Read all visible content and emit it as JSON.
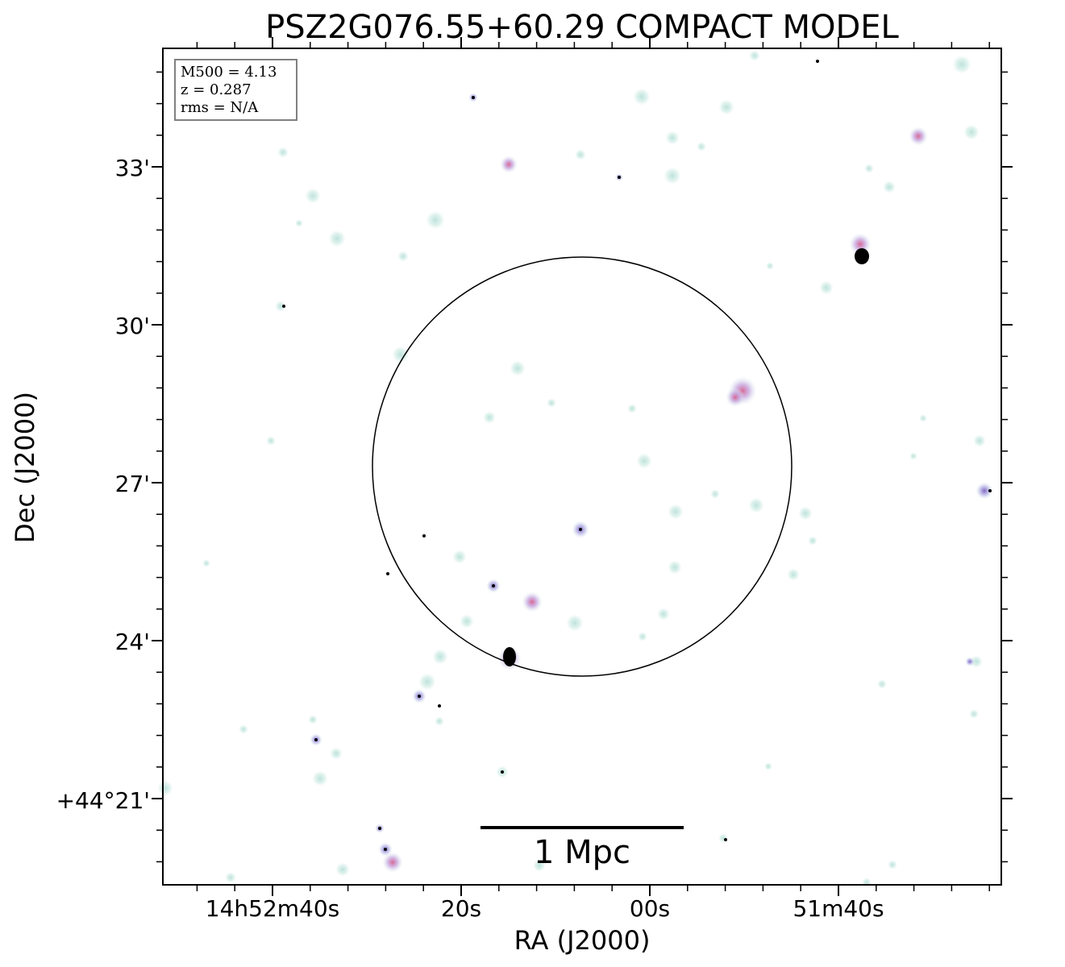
{
  "title": "PSZ2G076.55+60.29 COMPACT MODEL",
  "info_box": {
    "lines": [
      "M500 = 4.13",
      "z = 0.287",
      "rms = N/A"
    ]
  },
  "axes": {
    "xlabel": "RA (J2000)",
    "ylabel": "Dec (J2000)",
    "x_tick_labels": [
      "14h52m40s",
      "20s",
      "00s",
      "51m40s"
    ],
    "y_tick_labels": [
      "33'",
      "30'",
      "27'",
      "24'",
      "+44°21'"
    ]
  },
  "scalebar": {
    "label": "1 Mpc"
  },
  "colors": {
    "axis": "#000000",
    "circle": "#000000",
    "source_halo": "#cfeae2",
    "source_pink": "#d98fb0",
    "source_purple": "#9b7bd0",
    "source_core": "#000000"
  }
}
